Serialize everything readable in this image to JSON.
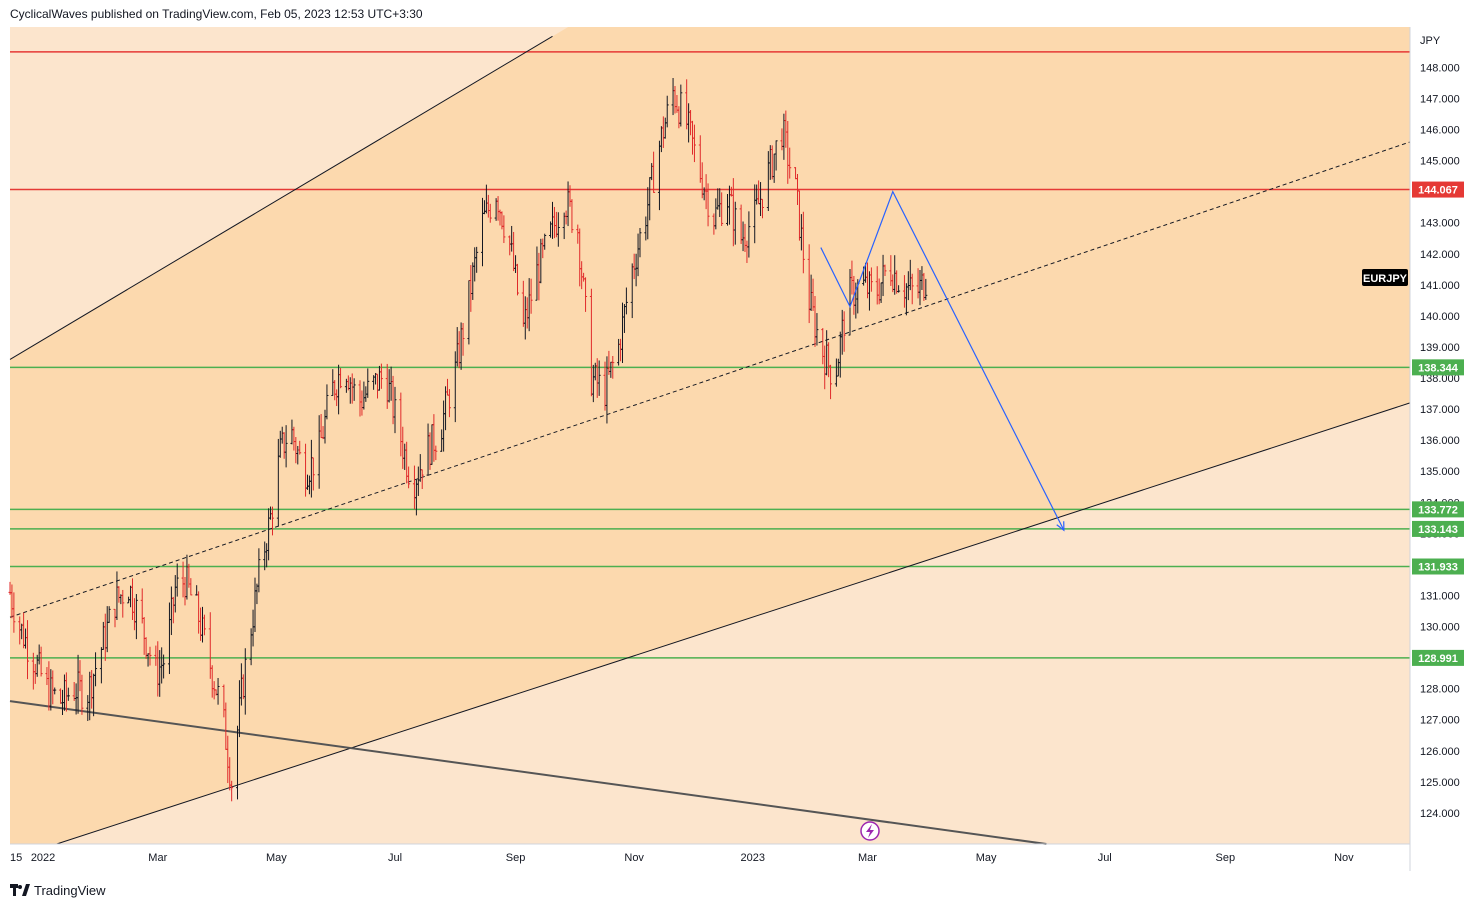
{
  "header": {
    "attribution": "CyclicalWaves published on TradingView.com, Feb 05, 2023 12:53 UTC+3:30"
  },
  "footer": {
    "brand": "TradingView"
  },
  "colors": {
    "plot_background": "#fce5cd",
    "channel_fill": "#fcd9ae",
    "up_candle": "#131722",
    "down_candle": "#e02a2a",
    "resistance_line": "#e53935",
    "support_line": "#4caf50",
    "forecast_path": "#2962ff",
    "channel_lines": "#131722",
    "long_trendline": "#555555",
    "symbol_tag_bg": "#000000"
  },
  "chart_data": {
    "type": "candlestick",
    "symbol": "EURJPY",
    "currency": "JPY",
    "ylim": [
      123.0,
      149.3
    ],
    "y_ticks": [
      124,
      125,
      126,
      127,
      128,
      129,
      130,
      131,
      132,
      133,
      134,
      135,
      136,
      137,
      138,
      139,
      140,
      141,
      142,
      143,
      144,
      145,
      146,
      147,
      148
    ],
    "x_range": [
      "2021-12-15",
      "2023-12-05"
    ],
    "x_tick_labels": [
      {
        "date": "2021-12-15",
        "label": "15"
      },
      {
        "date": "2022-01-01",
        "label": "2022"
      },
      {
        "date": "2022-03-01",
        "label": "Mar"
      },
      {
        "date": "2022-05-01",
        "label": "May"
      },
      {
        "date": "2022-07-01",
        "label": "Jul"
      },
      {
        "date": "2022-09-01",
        "label": "Sep"
      },
      {
        "date": "2022-11-01",
        "label": "Nov"
      },
      {
        "date": "2023-01-01",
        "label": "2023"
      },
      {
        "date": "2023-03-01",
        "label": "Mar"
      },
      {
        "date": "2023-05-01",
        "label": "May"
      },
      {
        "date": "2023-07-01",
        "label": "Jul"
      },
      {
        "date": "2023-09-01",
        "label": "Sep"
      },
      {
        "date": "2023-11-01",
        "label": "Nov"
      }
    ],
    "price_path": [
      [
        "2021-12-15",
        131.1
      ],
      [
        "2021-12-20",
        130.0
      ],
      [
        "2021-12-27",
        129.0
      ],
      [
        "2022-01-03",
        128.0
      ],
      [
        "2022-01-10",
        127.6
      ],
      [
        "2022-01-17",
        128.0
      ],
      [
        "2022-01-24",
        127.9
      ],
      [
        "2022-01-31",
        129.3
      ],
      [
        "2022-02-07",
        130.8
      ],
      [
        "2022-02-14",
        131.3
      ],
      [
        "2022-02-21",
        130.0
      ],
      [
        "2022-02-28",
        128.5
      ],
      [
        "2022-03-05",
        129.0
      ],
      [
        "2022-03-10",
        131.2
      ],
      [
        "2022-03-15",
        131.5
      ],
      [
        "2022-03-22",
        130.3
      ],
      [
        "2022-03-29",
        128.5
      ],
      [
        "2022-04-03",
        127.3
      ],
      [
        "2022-04-08",
        125.0
      ],
      [
        "2022-04-13",
        127.8
      ],
      [
        "2022-04-18",
        130.0
      ],
      [
        "2022-04-23",
        132.0
      ],
      [
        "2022-04-28",
        133.5
      ],
      [
        "2022-05-03",
        135.6
      ],
      [
        "2022-05-08",
        136.4
      ],
      [
        "2022-05-15",
        135.0
      ],
      [
        "2022-05-22",
        135.4
      ],
      [
        "2022-05-29",
        137.5
      ],
      [
        "2022-06-05",
        138.5
      ],
      [
        "2022-06-12",
        137.2
      ],
      [
        "2022-06-19",
        137.7
      ],
      [
        "2022-06-26",
        138.1
      ],
      [
        "2022-07-03",
        136.3
      ],
      [
        "2022-07-10",
        134.6
      ],
      [
        "2022-07-17",
        135.6
      ],
      [
        "2022-07-24",
        136.3
      ],
      [
        "2022-08-01",
        138.2
      ],
      [
        "2022-08-08",
        140.6
      ],
      [
        "2022-08-15",
        143.0
      ],
      [
        "2022-08-22",
        144.0
      ],
      [
        "2022-08-29",
        142.3
      ],
      [
        "2022-09-05",
        139.6
      ],
      [
        "2022-09-12",
        141.4
      ],
      [
        "2022-09-19",
        142.6
      ],
      [
        "2022-09-26",
        143.8
      ],
      [
        "2022-10-03",
        142.8
      ],
      [
        "2022-10-10",
        138.0
      ],
      [
        "2022-10-17",
        137.6
      ],
      [
        "2022-10-24",
        139.0
      ],
      [
        "2022-10-31",
        141.5
      ],
      [
        "2022-11-07",
        143.3
      ],
      [
        "2022-11-14",
        145.5
      ],
      [
        "2022-11-21",
        147.2
      ],
      [
        "2022-11-28",
        146.2
      ],
      [
        "2022-12-05",
        144.6
      ],
      [
        "2022-12-12",
        143.2
      ],
      [
        "2022-12-19",
        143.8
      ],
      [
        "2022-12-26",
        142.5
      ],
      [
        "2023-01-02",
        143.2
      ],
      [
        "2023-01-09",
        144.6
      ],
      [
        "2023-01-16",
        146.0
      ],
      [
        "2023-01-23",
        144.0
      ],
      [
        "2023-01-30",
        140.5
      ],
      [
        "2023-02-05",
        139.0
      ],
      [
        "2023-02-12",
        138.0
      ],
      [
        "2023-02-19",
        140.6
      ],
      [
        "2023-02-26",
        141.0
      ],
      [
        "2023-03-05",
        140.7
      ],
      [
        "2023-03-12",
        141.6
      ],
      [
        "2023-03-19",
        141.0
      ],
      [
        "2023-03-26",
        140.7
      ],
      [
        "2023-04-02",
        141.4
      ]
    ],
    "horizontal_levels": [
      {
        "price": 148.5,
        "color": "#e53935",
        "show_tag": false
      },
      {
        "price": 144.067,
        "label": "144.067",
        "color": "#e53935",
        "show_tag": true
      },
      {
        "price": 138.344,
        "label": "138.344",
        "color": "#4caf50",
        "show_tag": true
      },
      {
        "price": 133.772,
        "label": "133.772",
        "color": "#4caf50",
        "show_tag": true
      },
      {
        "price": 133.143,
        "label": "133.143",
        "color": "#4caf50",
        "show_tag": true
      },
      {
        "price": 131.933,
        "label": "131.933",
        "color": "#4caf50",
        "show_tag": true
      },
      {
        "price": 128.991,
        "label": "128.991",
        "color": "#4caf50",
        "show_tag": true
      }
    ],
    "channel": {
      "upper": [
        [
          "2021-12-15",
          138.6
        ],
        [
          "2022-09-20",
          149.0
        ]
      ],
      "middle": [
        [
          "2021-12-15",
          130.3
        ],
        [
          "2023-12-05",
          145.6
        ]
      ],
      "lower": [
        [
          "2022-01-08",
          123.0
        ],
        [
          "2023-12-05",
          137.2
        ]
      ],
      "fill_until": "2023-12-05"
    },
    "long_trendline": [
      [
        "2021-12-15",
        127.6
      ],
      [
        "2023-06-01",
        123.0
      ]
    ],
    "forecast_path": [
      [
        "2023-02-05",
        142.2
      ],
      [
        "2023-02-20",
        140.3
      ],
      [
        "2023-03-14",
        144.0
      ],
      [
        "2023-06-10",
        133.1
      ]
    ],
    "last_price_tag": "EURJPY"
  }
}
